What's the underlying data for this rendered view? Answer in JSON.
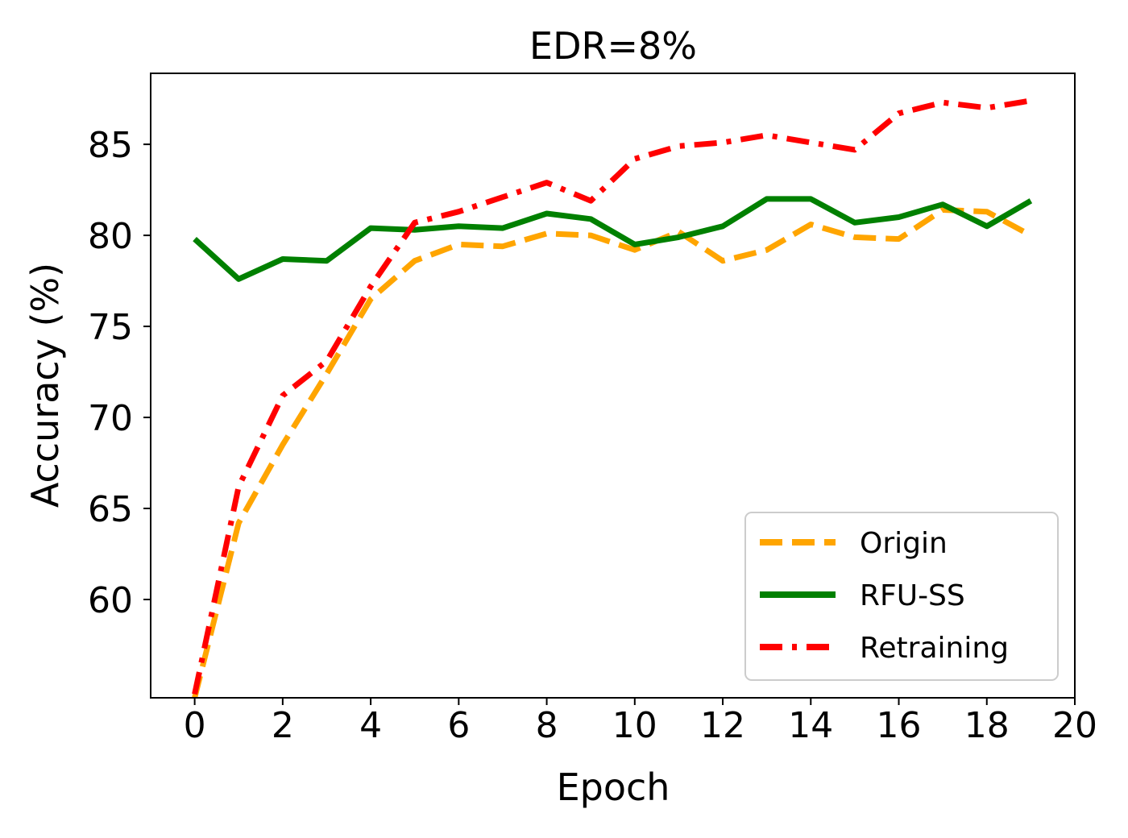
{
  "chart_data": {
    "type": "line",
    "title": "EDR=8%",
    "xlabel": "Epoch",
    "ylabel": "Accuracy (%)",
    "xlim": [
      -1,
      20
    ],
    "ylim": [
      54.6,
      88.9
    ],
    "xticks": [
      "0",
      "2",
      "4",
      "6",
      "8",
      "10",
      "12",
      "14",
      "16",
      "18",
      "20"
    ],
    "yticks": [
      "60",
      "65",
      "70",
      "75",
      "80",
      "85"
    ],
    "legend_position": "lower-right",
    "x": [
      0,
      1,
      2,
      3,
      4,
      5,
      6,
      7,
      8,
      9,
      10,
      11,
      12,
      13,
      14,
      15,
      16,
      17,
      18,
      19
    ],
    "series": [
      {
        "name": "Origin",
        "color": "#FFA500",
        "style": "dashed",
        "values": [
          54.6,
          64.2,
          68.5,
          72.4,
          76.5,
          78.6,
          79.5,
          79.4,
          80.1,
          80.0,
          79.2,
          80.2,
          78.6,
          79.2,
          80.6,
          79.9,
          79.8,
          81.4,
          81.3,
          80.0
        ]
      },
      {
        "name": "RFU-SS",
        "color": "#008000",
        "style": "solid",
        "values": [
          79.8,
          77.6,
          78.7,
          78.6,
          80.4,
          80.3,
          80.5,
          80.4,
          81.2,
          80.9,
          79.5,
          79.9,
          80.5,
          82.0,
          82.0,
          80.7,
          81.0,
          81.7,
          80.5,
          81.9
        ]
      },
      {
        "name": "Retraining",
        "color": "#FF0000",
        "style": "dashdot",
        "values": [
          54.8,
          66.2,
          71.2,
          73.1,
          77.2,
          80.7,
          81.3,
          82.1,
          82.9,
          81.9,
          84.2,
          84.9,
          85.1,
          85.5,
          85.1,
          84.7,
          86.7,
          87.3,
          87.0,
          87.4
        ]
      }
    ]
  }
}
